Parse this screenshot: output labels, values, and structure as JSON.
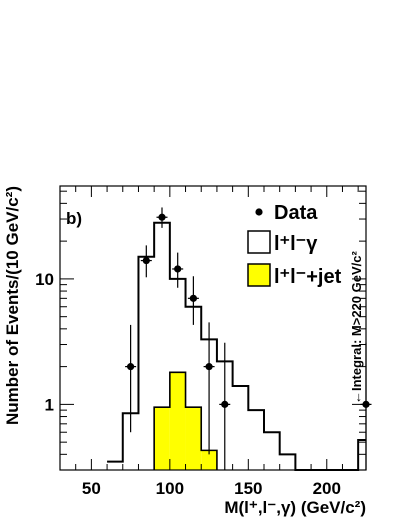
{
  "chart_data": {
    "type": "histogram",
    "panel_label": "b)",
    "xlabel": "M(l⁺,l⁻,γ) (GeV/c²)",
    "ylabel": "Number of Events/(10 GeV/c²)",
    "xlim": [
      30,
      225
    ],
    "ylim_log": [
      0.3,
      55
    ],
    "x_ticks": [
      50,
      100,
      150,
      200
    ],
    "y_ticks": [
      {
        "value": 1,
        "label": "1"
      },
      {
        "value": 10,
        "label": "10"
      }
    ],
    "annotation": "←Integral: M>220 GeV/c²",
    "legend": {
      "data": "Data",
      "signal": "l⁺l⁻γ",
      "background": "l⁺l⁻+jet",
      "position": "top-right"
    },
    "signal_hist": {
      "bin_edges": [
        60,
        70,
        80,
        90,
        100,
        110,
        120,
        130,
        140,
        150,
        160,
        170,
        180,
        190,
        200,
        210,
        220,
        230
      ],
      "values": [
        0.35,
        0.85,
        15.0,
        28.0,
        10.0,
        6.0,
        3.3,
        2.2,
        1.4,
        0.9,
        0.6,
        0.4,
        0.3,
        0.3,
        0.3,
        0.3,
        0.52
      ]
    },
    "background_hist": {
      "bin_edges": [
        90,
        100,
        110,
        120,
        130
      ],
      "values": [
        0.95,
        1.8,
        0.95,
        0.43
      ]
    },
    "data_points": [
      {
        "x": 75,
        "y": 2,
        "err_lo": 0.6,
        "err_hi": 4.3
      },
      {
        "x": 85,
        "y": 14,
        "err_lo": 10.3,
        "err_hi": 18.5
      },
      {
        "x": 95,
        "y": 31,
        "err_lo": 25.5,
        "err_hi": 37.1
      },
      {
        "x": 105,
        "y": 12,
        "err_lo": 8.5,
        "err_hi": 16.2
      },
      {
        "x": 115,
        "y": 7,
        "err_lo": 4.3,
        "err_hi": 10.5
      },
      {
        "x": 125,
        "y": 2,
        "err_lo": 0.4,
        "err_hi": 4.5
      },
      {
        "x": 135,
        "y": 1,
        "err_lo": 0.2,
        "err_hi": 3.1
      },
      {
        "x": 225,
        "y": 1,
        "err_lo": 0.2,
        "err_hi": 3.1
      }
    ],
    "colors": {
      "background_fill": "#ffff00",
      "lines": "#000000",
      "frame_background": "#ffffff"
    }
  }
}
